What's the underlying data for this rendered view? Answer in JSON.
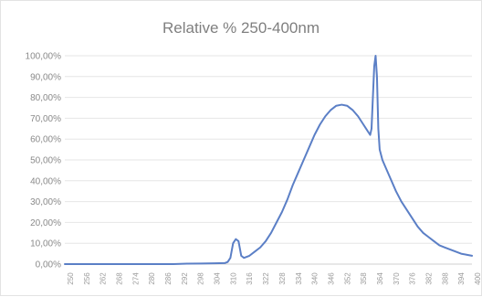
{
  "chart_data": {
    "type": "line",
    "title": "Relative % 250-400nm",
    "xlabel": "",
    "ylabel": "",
    "grid": true,
    "legend": "none",
    "xlim": [
      250,
      400
    ],
    "ylim": [
      0,
      100
    ],
    "y_ticks": [
      "0,00%",
      "10,00%",
      "20,00%",
      "30,00%",
      "40,00%",
      "50,00%",
      "60,00%",
      "70,00%",
      "80,00%",
      "90,00%",
      "100,00%"
    ],
    "x_ticks": [
      "250",
      "256",
      "262",
      "268",
      "274",
      "280",
      "286",
      "292",
      "298",
      "304",
      "310",
      "316",
      "322",
      "328",
      "334",
      "340",
      "346",
      "352",
      "358",
      "364",
      "370",
      "376",
      "382",
      "388",
      "394",
      "400"
    ],
    "series": [
      {
        "color": "#5b7fc6",
        "x": [
          250,
          260,
          270,
          280,
          290,
          295,
          300,
          305,
          309,
          310,
          311,
          312,
          313,
          314,
          315,
          316,
          318,
          320,
          322,
          324,
          326,
          328,
          330,
          332,
          334,
          336,
          338,
          340,
          342,
          344,
          346,
          348,
          350,
          352,
          354,
          356,
          358,
          360,
          361,
          362,
          362.5,
          363,
          363.5,
          364,
          364.5,
          365,
          365.5,
          366,
          367,
          368,
          370,
          372,
          374,
          376,
          378,
          380,
          382,
          384,
          386,
          388,
          390,
          392,
          394,
          396,
          398,
          400
        ],
        "y": [
          0,
          0,
          0,
          0,
          0,
          0.2,
          0.3,
          0.4,
          0.5,
          1,
          3,
          10,
          12,
          11,
          4,
          3,
          4,
          6,
          8,
          11,
          15,
          20,
          25,
          31,
          38,
          44,
          50,
          56,
          62,
          67,
          71,
          74,
          76,
          76.5,
          76,
          74,
          71,
          67,
          65,
          63,
          62,
          65,
          80,
          95,
          100,
          90,
          65,
          55,
          50,
          47,
          41,
          35,
          30,
          26,
          22,
          18,
          15,
          13,
          11,
          9,
          8,
          7,
          6,
          5,
          4.5,
          4
        ]
      }
    ]
  }
}
